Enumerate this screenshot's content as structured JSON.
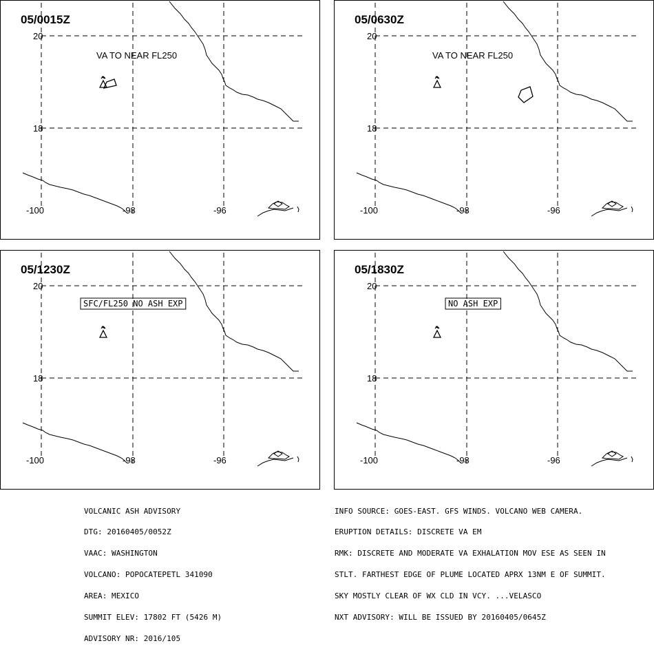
{
  "panels": [
    {
      "id": "p1",
      "time": "05/0015Z",
      "label": "VA TO NEAR FL250",
      "boxed": false,
      "ash": "p1"
    },
    {
      "id": "p2",
      "time": "05/0630Z",
      "label": "VA TO NEAR FL250",
      "boxed": false,
      "ash": "p2"
    },
    {
      "id": "p3",
      "time": "05/1230Z",
      "label": "SFC/FL250 NO ASH EXP",
      "boxed": true,
      "ash": "none"
    },
    {
      "id": "p4",
      "time": "05/1830Z",
      "label": "NO ASH EXP",
      "boxed": true,
      "ash": "none"
    }
  ],
  "grid": {
    "lat_labels": [
      "20",
      "18"
    ],
    "lon_labels": [
      "-100",
      "-98",
      "-96"
    ]
  },
  "advisory_left": [
    "VOLCANIC ASH ADVISORY",
    "DTG: 20160405/0052Z",
    "VAAC: WASHINGTON",
    "VOLCANO: POPOCATEPETL 341090",
    "AREA: MEXICO",
    "SUMMIT ELEV: 17802 FT (5426 M)",
    "ADVISORY NR: 2016/105"
  ],
  "advisory_right": [
    "INFO SOURCE: GOES-EAST. GFS WINDS. VOLCANO WEB CAMERA.",
    "ERUPTION DETAILS: DISCRETE VA EM",
    "RMK: DISCRETE AND MODERATE VA EXHALATION MOV ESE AS SEEN IN",
    "STLT. FARTHEST EDGE OF PLUME LOCATED APRX 13NM E OF SUMMIT.",
    "SKY MOSTLY CLEAR OF WX CLD IN VCY. ...VELASCO",
    "NXT ADVISORY: WILL BE ISSUED BY 20160405/0645Z"
  ],
  "colors": {
    "line": "#000000",
    "background": "#ffffff"
  }
}
